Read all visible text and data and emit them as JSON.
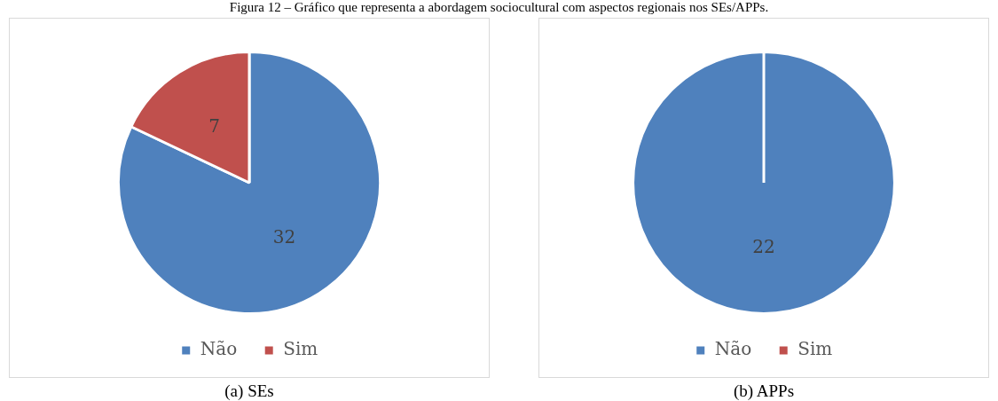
{
  "chart_data": [
    {
      "type": "pie",
      "title": "Figura 12 – Gráfico que representa a abordagem sociocultural com aspectos regionais nos SEs/APPs.",
      "subtitle": "(a) SEs",
      "categories": [
        "Não",
        "Sim"
      ],
      "values": [
        32,
        7
      ],
      "colors": [
        "#4f81bd",
        "#c0504d"
      ],
      "data_labels": true,
      "legend": "bottom"
    },
    {
      "type": "pie",
      "subtitle": "(b) APPs",
      "categories": [
        "Não",
        "Sim"
      ],
      "values": [
        22,
        0
      ],
      "colors": [
        "#4f81bd",
        "#c0504d"
      ],
      "value_labels": [
        "22",
        null
      ],
      "legend": "bottom"
    }
  ]
}
